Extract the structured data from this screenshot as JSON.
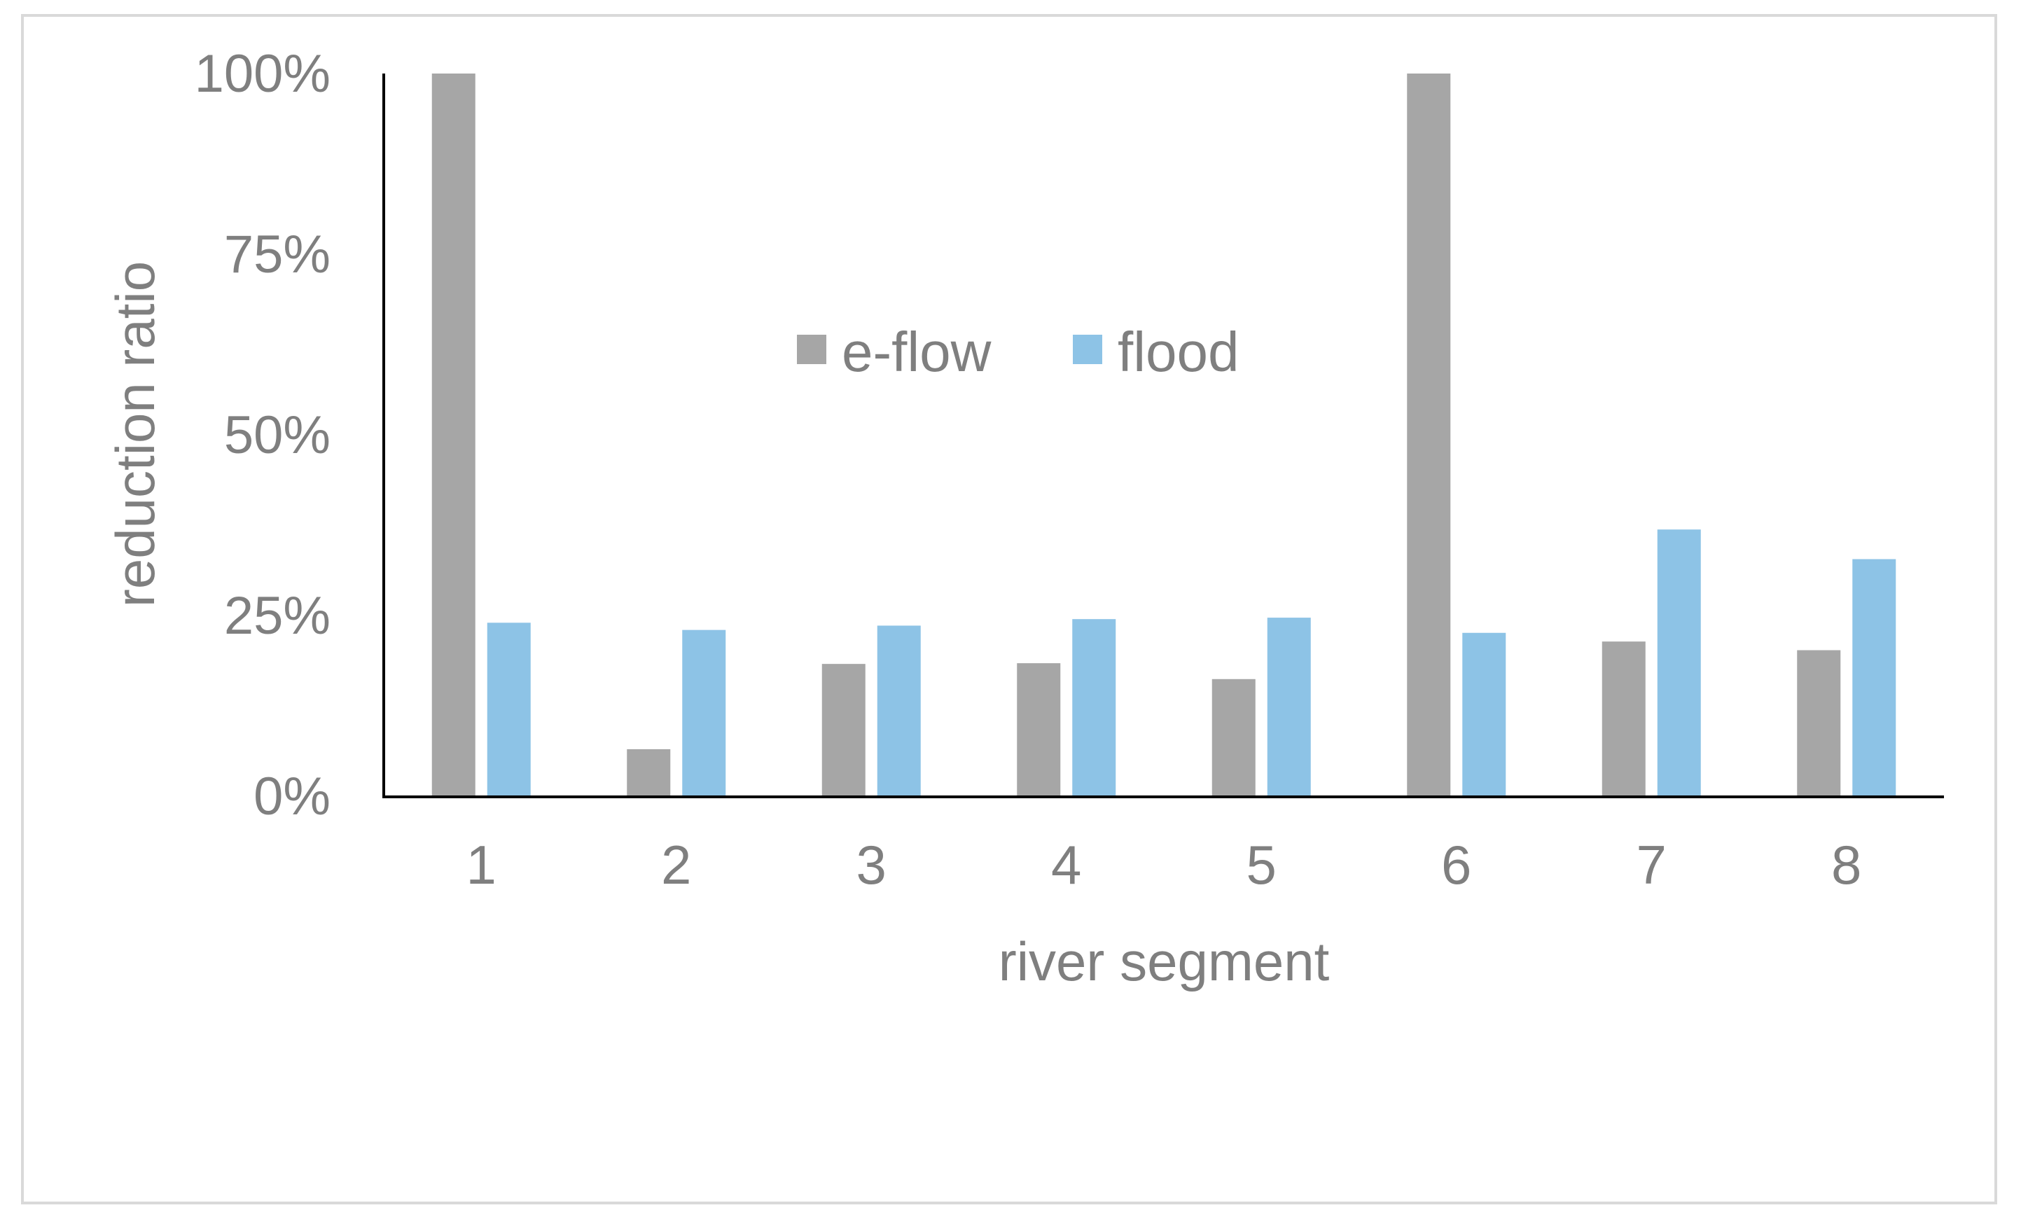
{
  "chart_data": {
    "type": "bar",
    "title": "",
    "xlabel": "river segment",
    "ylabel": "reduction ratio",
    "categories": [
      "1",
      "2",
      "3",
      "4",
      "5",
      "6",
      "7",
      "8"
    ],
    "series": [
      {
        "name": "e-flow",
        "color": "#a6a6a6",
        "values": [
          100,
          6.5,
          18.3,
          18.4,
          16.2,
          100,
          21.4,
          20.2
        ]
      },
      {
        "name": "flood",
        "color": "#8dc3e6",
        "values": [
          24.0,
          23.0,
          23.6,
          24.5,
          24.7,
          22.6,
          36.9,
          32.8
        ]
      }
    ],
    "ylim": [
      0,
      100
    ],
    "yticks": [
      "0%",
      "25%",
      "50%",
      "75%",
      "100%"
    ],
    "grid": false,
    "legend_position": "top-center"
  }
}
